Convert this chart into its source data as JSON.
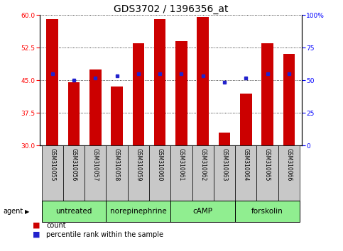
{
  "title": "GDS3702 / 1396356_at",
  "samples": [
    "GSM310055",
    "GSM310056",
    "GSM310057",
    "GSM310058",
    "GSM310059",
    "GSM310060",
    "GSM310061",
    "GSM310062",
    "GSM310063",
    "GSM310064",
    "GSM310065",
    "GSM310066"
  ],
  "bar_values": [
    59.0,
    44.5,
    47.5,
    43.5,
    53.5,
    59.0,
    54.0,
    59.5,
    33.0,
    42.0,
    53.5,
    51.0
  ],
  "percentile_values": [
    46.5,
    45.0,
    45.5,
    46.0,
    46.5,
    46.5,
    46.5,
    46.0,
    44.5,
    45.5,
    46.5,
    46.5
  ],
  "bar_bottom": 30,
  "ylim_left": [
    30,
    60
  ],
  "ylim_right": [
    0,
    100
  ],
  "yticks_left": [
    30,
    37.5,
    45,
    52.5,
    60
  ],
  "yticks_right": [
    0,
    25,
    50,
    75,
    100
  ],
  "bar_color": "#cc0000",
  "percentile_color": "#2222cc",
  "agent_groups": [
    {
      "label": "untreated",
      "start": 0,
      "end": 3
    },
    {
      "label": "norepinephrine",
      "start": 3,
      "end": 6
    },
    {
      "label": "cAMP",
      "start": 6,
      "end": 9
    },
    {
      "label": "forskolin",
      "start": 9,
      "end": 12
    }
  ],
  "agent_label": "agent",
  "agent_bg_color": "#90ee90",
  "sample_bg_color": "#c8c8c8",
  "legend_count_label": "count",
  "legend_pct_label": "percentile rank within the sample",
  "title_fontsize": 10,
  "tick_fontsize": 6.5,
  "sample_fontsize": 5.5,
  "agent_fontsize": 7.5,
  "legend_fontsize": 7
}
